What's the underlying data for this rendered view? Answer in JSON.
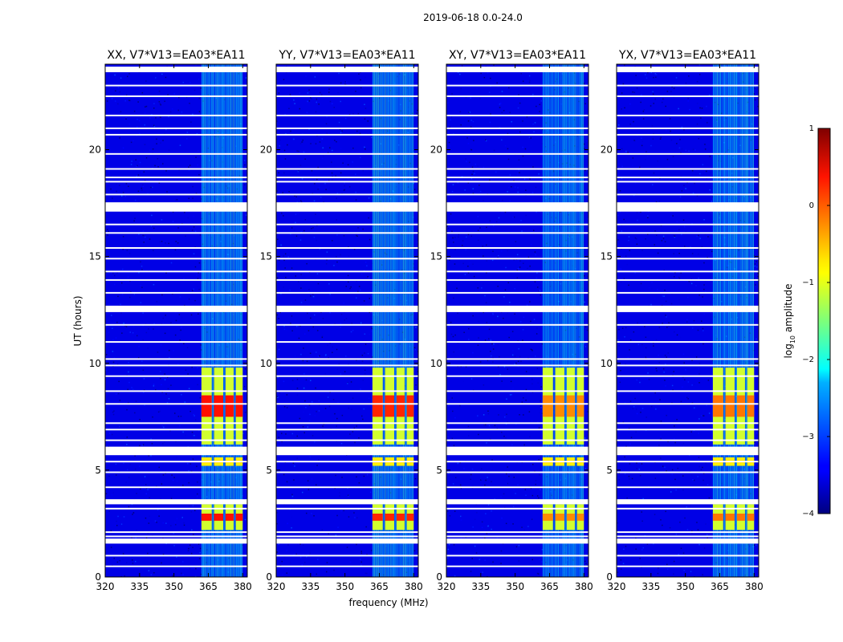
{
  "chart_data": {
    "type": "heatmap",
    "figure_title": "2019-06-18 0.0-24.0",
    "shared_axes": {
      "xlabel": "frequency (MHz)",
      "ylabel": "UT (hours)",
      "xlim": [
        320,
        382
      ],
      "ylim": [
        0,
        24
      ],
      "xticks": [
        320,
        335,
        350,
        365,
        380
      ],
      "yticks": [
        0,
        5,
        10,
        15,
        20
      ]
    },
    "panels": [
      {
        "title": "XX, V7*V13=EA03*EA11",
        "strong_rfi_value": 0.3
      },
      {
        "title": "YY, V7*V13=EA03*EA11",
        "strong_rfi_value": 0.2
      },
      {
        "title": "XY, V7*V13=EA03*EA11",
        "strong_rfi_value": -0.3
      },
      {
        "title": "YX, V7*V13=EA03*EA11",
        "strong_rfi_value": -0.2
      }
    ],
    "rfi_features": {
      "background_log_amplitude": -3.5,
      "persistent_band_MHz": [
        362,
        380
      ],
      "persistent_band_log_amplitude": -2.3,
      "strong_blocks": [
        {
          "ut_range": [
            6.2,
            9.8
          ],
          "channels_MHz": [
            [
              362,
              366.5
            ],
            [
              367.5,
              371.5
            ],
            [
              372.5,
              376
            ],
            [
              377,
              380
            ]
          ]
        },
        {
          "ut_range": [
            2.2,
            3.4
          ],
          "channels_MHz": [
            [
              362,
              366.5
            ],
            [
              367.5,
              371.5
            ],
            [
              372.5,
              376
            ],
            [
              377,
              380
            ]
          ]
        },
        {
          "ut_range": [
            5.2,
            5.6
          ],
          "channels_MHz": [
            [
              362,
              366.5
            ],
            [
              367.5,
              371.5
            ],
            [
              372.5,
              376
            ],
            [
              377,
              380
            ]
          ]
        }
      ],
      "flagged_ut_rows": [
        23.8,
        23.0,
        22.5,
        21.6,
        21.0,
        20.7,
        19.8,
        19.1,
        18.7,
        18.5,
        17.9,
        17.5,
        16.5,
        16.1,
        15.4,
        14.9,
        14.3,
        13.9,
        13.3,
        12.6,
        11.8,
        11.0,
        10.2,
        9.9,
        9.4,
        8.7,
        8.1,
        7.2,
        6.9,
        6.4,
        5.9,
        5.4,
        4.9,
        4.2,
        3.6,
        3.2,
        2.1,
        1.9,
        1.6,
        1.0,
        0.5
      ],
      "flagged_ut_bands": [
        [
          17.1,
          17.5
        ],
        [
          12.4,
          12.7
        ],
        [
          5.7,
          6.1
        ],
        [
          3.4,
          3.6
        ],
        [
          1.6,
          1.8
        ]
      ]
    },
    "colorbar": {
      "label_prefix": "log",
      "label_subscript": "10",
      "label_suffix": " amplitude",
      "range": [
        -4,
        1
      ],
      "ticks": [
        "1",
        "0",
        "−1",
        "−2",
        "−3",
        "−4"
      ],
      "tick_values": [
        1,
        0,
        -1,
        -2,
        -3,
        -4
      ],
      "colormap": "jet"
    }
  }
}
